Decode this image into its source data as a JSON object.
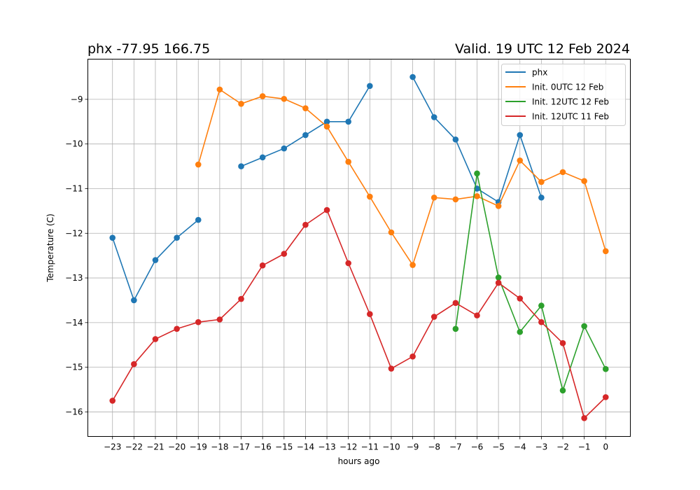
{
  "title_left": "phx -77.95 166.75",
  "title_right": "Valid. 19 UTC 12 Feb 2024",
  "chart_data": {
    "type": "line",
    "xlabel": "hours ago",
    "ylabel": "Temperature (C)",
    "xlim": [
      -24.15,
      1.15
    ],
    "ylim": [
      -16.55,
      -8.1
    ],
    "xticks": [
      -23,
      -22,
      -21,
      -20,
      -19,
      -18,
      -17,
      -16,
      -15,
      -14,
      -13,
      -12,
      -11,
      -10,
      -9,
      -8,
      -7,
      -6,
      -5,
      -4,
      -3,
      -2,
      -1,
      0
    ],
    "xtick_labels": [
      "−23",
      "−22",
      "−21",
      "−20",
      "−19",
      "−18",
      "−17",
      "−16",
      "−15",
      "−14",
      "−13",
      "−12",
      "−11",
      "−10",
      "−9",
      "−8",
      "−7",
      "−6",
      "−5",
      "−4",
      "−3",
      "−2",
      "−1",
      "0"
    ],
    "yticks": [
      -16,
      -15,
      -14,
      -13,
      -12,
      -11,
      -10,
      -9
    ],
    "ytick_labels": [
      "−16",
      "−15",
      "−14",
      "−13",
      "−12",
      "−11",
      "−10",
      "−9"
    ],
    "grid": true,
    "legend_position": "top-right",
    "series": [
      {
        "name": "phx",
        "color": "#1f77b4",
        "segments": [
          [
            [
              -23,
              -12.1
            ],
            [
              -22,
              -13.5
            ],
            [
              -21,
              -12.6
            ],
            [
              -20,
              -12.1
            ],
            [
              -19,
              -11.7
            ]
          ],
          [
            [
              -17,
              -10.5
            ],
            [
              -16,
              -10.3
            ],
            [
              -15,
              -10.1
            ],
            [
              -14,
              -9.8
            ],
            [
              -13,
              -9.5
            ],
            [
              -12,
              -9.5
            ],
            [
              -11,
              -8.7
            ]
          ],
          [
            [
              -9,
              -8.5
            ],
            [
              -8,
              -9.4
            ],
            [
              -7,
              -9.9
            ],
            [
              -6,
              -11.0
            ],
            [
              -5,
              -11.3
            ],
            [
              -4,
              -9.8
            ],
            [
              -3,
              -11.2
            ]
          ]
        ]
      },
      {
        "name": "Init. 0UTC 12 Feb",
        "color": "#ff7f0e",
        "segments": [
          [
            [
              -19,
              -10.46
            ],
            [
              -18,
              -8.78
            ],
            [
              -17,
              -9.1
            ],
            [
              -16,
              -8.93
            ],
            [
              -15,
              -8.99
            ],
            [
              -14,
              -9.2
            ],
            [
              -13,
              -9.61
            ],
            [
              -12,
              -10.4
            ],
            [
              -11,
              -11.18
            ],
            [
              -10,
              -11.98
            ],
            [
              -9,
              -12.71
            ],
            [
              -8,
              -11.2
            ],
            [
              -7,
              -11.24
            ],
            [
              -6,
              -11.17
            ],
            [
              -5,
              -11.39
            ],
            [
              -4,
              -10.37
            ],
            [
              -3,
              -10.85
            ],
            [
              -2,
              -10.63
            ],
            [
              -1,
              -10.83
            ],
            [
              0,
              -12.4
            ]
          ]
        ]
      },
      {
        "name": "Init. 12UTC 12 Feb",
        "color": "#2ca02c",
        "segments": [
          [
            [
              -7,
              -14.14
            ],
            [
              -6,
              -10.66
            ],
            [
              -5,
              -12.99
            ],
            [
              -4,
              -14.21
            ],
            [
              -3,
              -13.62
            ],
            [
              -2,
              -15.52
            ],
            [
              -1,
              -14.08
            ],
            [
              0,
              -15.04
            ]
          ]
        ]
      },
      {
        "name": "Init. 12UTC 11 Feb",
        "color": "#d62728",
        "segments": [
          [
            [
              -23,
              -15.75
            ],
            [
              -22,
              -14.93
            ],
            [
              -21,
              -14.37
            ],
            [
              -20,
              -14.14
            ],
            [
              -19,
              -13.99
            ],
            [
              -18,
              -13.93
            ],
            [
              -17,
              -13.47
            ],
            [
              -16,
              -12.72
            ],
            [
              -15,
              -12.46
            ],
            [
              -14,
              -11.81
            ],
            [
              -13,
              -11.48
            ],
            [
              -12,
              -12.67
            ],
            [
              -11,
              -13.81
            ],
            [
              -10,
              -15.03
            ],
            [
              -9,
              -14.76
            ],
            [
              -8,
              -13.87
            ],
            [
              -7,
              -13.56
            ],
            [
              -6,
              -13.84
            ],
            [
              -5,
              -13.11
            ],
            [
              -4,
              -13.46
            ],
            [
              -3,
              -13.99
            ],
            [
              -2,
              -14.46
            ],
            [
              -1,
              -16.14
            ],
            [
              0,
              -15.67
            ]
          ]
        ]
      }
    ]
  }
}
